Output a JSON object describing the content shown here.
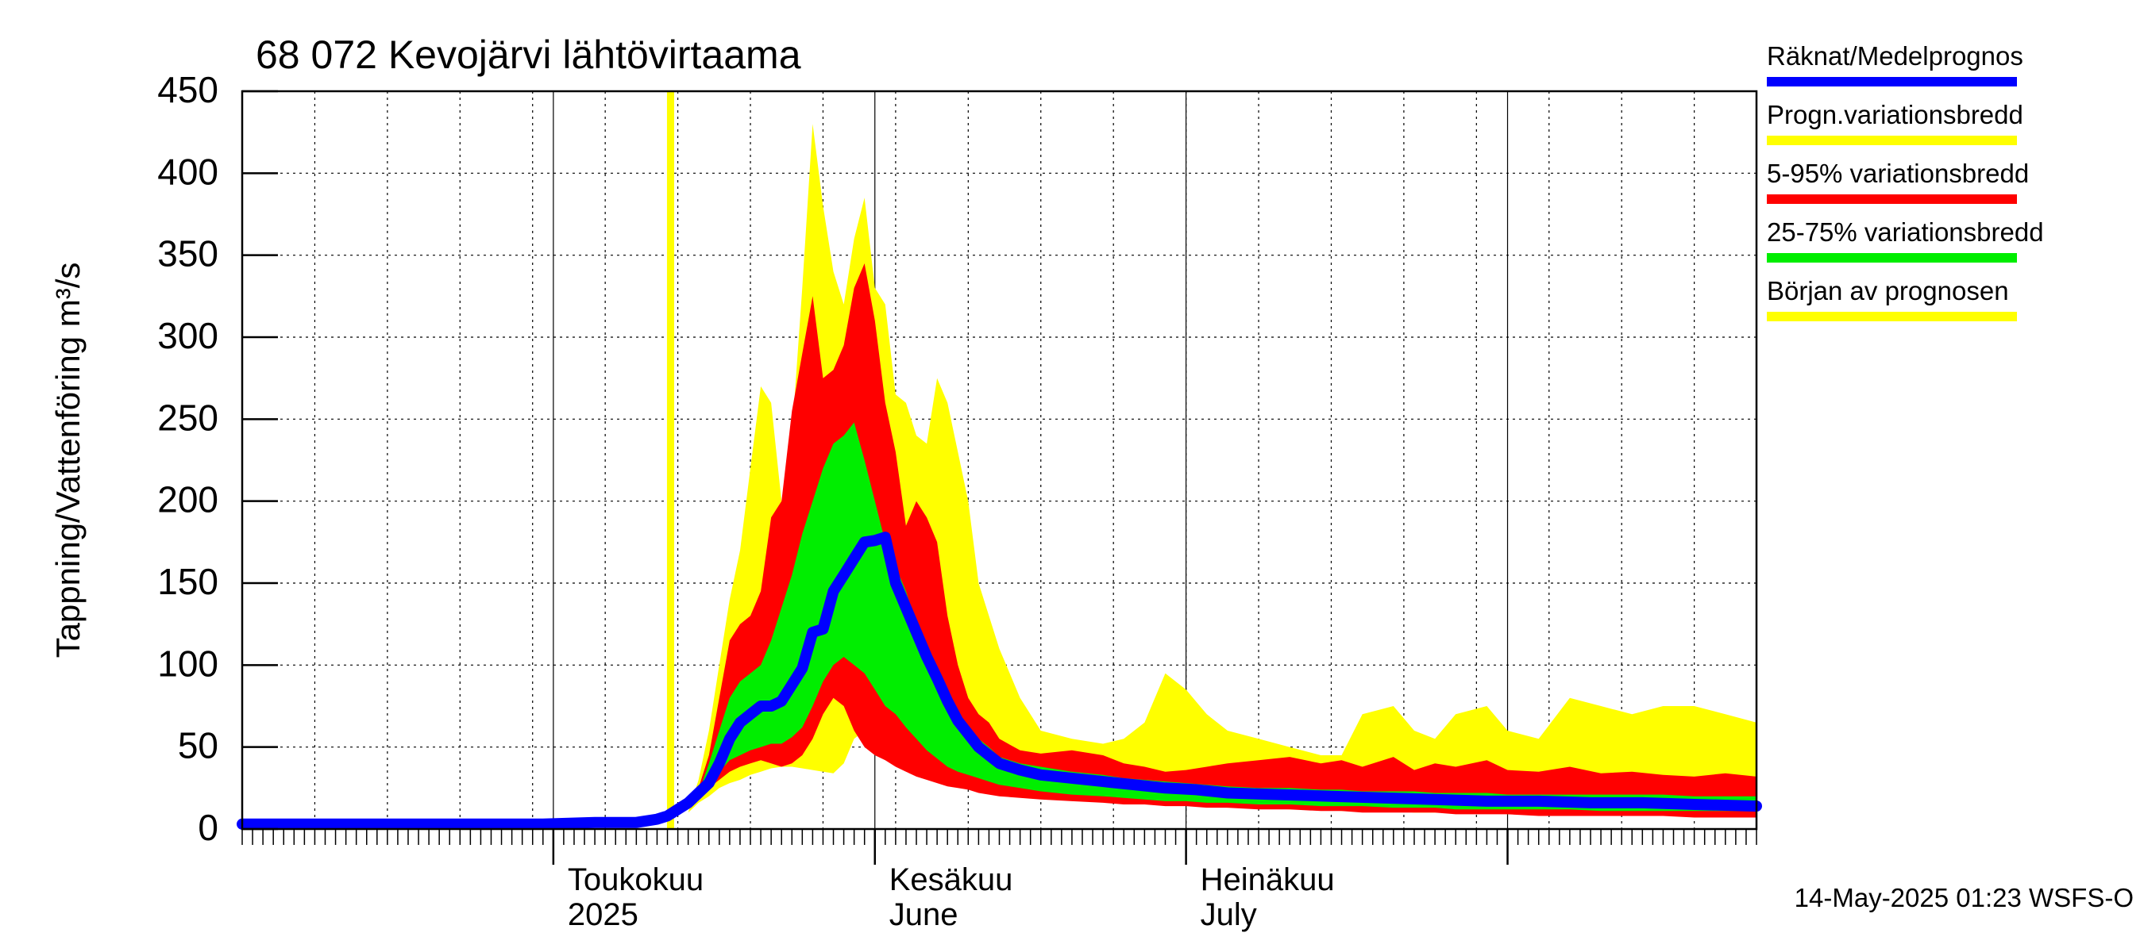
{
  "chart_data": {
    "type": "area",
    "title": "68 072 Kevojärvi lähtövirtaama",
    "ylabel": "Tappning/Vattenföring m³/s",
    "ylim": [
      0,
      450
    ],
    "yticks": [
      "0",
      "50",
      "100",
      "150",
      "200",
      "250",
      "300",
      "350",
      "400",
      "450"
    ],
    "xlim": [
      "2025-04-01",
      "2025-08-25"
    ],
    "month_labels": [
      {
        "date": "2025-05-01",
        "line1": "Toukokuu",
        "line2": "2025"
      },
      {
        "date": "2025-06-01",
        "line1": "Kesäkuu",
        "line2": "June"
      },
      {
        "date": "2025-07-01",
        "line1": "Heinäkuu",
        "line2": "July"
      }
    ],
    "forecast_start": "2025-05-13",
    "legend_position": "right",
    "footer": "14-May-2025 01:23 WSFS-O",
    "series": [
      {
        "name": "Progn.variationsbredd",
        "color": "#ffff00",
        "kind": "band",
        "x": [
          "2025-05-13",
          "2025-05-14",
          "2025-05-15",
          "2025-05-16",
          "2025-05-17",
          "2025-05-18",
          "2025-05-19",
          "2025-05-20",
          "2025-05-21",
          "2025-05-22",
          "2025-05-23",
          "2025-05-24",
          "2025-05-25",
          "2025-05-26",
          "2025-05-27",
          "2025-05-28",
          "2025-05-29",
          "2025-05-30",
          "2025-05-31",
          "2025-06-01",
          "2025-06-02",
          "2025-06-03",
          "2025-06-04",
          "2025-06-05",
          "2025-06-06",
          "2025-06-07",
          "2025-06-08",
          "2025-06-09",
          "2025-06-10",
          "2025-06-11",
          "2025-06-12",
          "2025-06-13",
          "2025-06-15",
          "2025-06-17",
          "2025-06-20",
          "2025-06-23",
          "2025-06-25",
          "2025-06-27",
          "2025-06-29",
          "2025-07-01",
          "2025-07-03",
          "2025-07-05",
          "2025-07-08",
          "2025-07-11",
          "2025-07-14",
          "2025-07-16",
          "2025-07-18",
          "2025-07-21",
          "2025-07-23",
          "2025-07-25",
          "2025-07-27",
          "2025-07-30",
          "2025-08-01",
          "2025-08-04",
          "2025-08-07",
          "2025-08-10",
          "2025-08-13",
          "2025-08-16",
          "2025-08-19",
          "2025-08-22",
          "2025-08-25"
        ],
        "high": [
          0,
          10,
          30,
          60,
          100,
          140,
          170,
          220,
          270,
          260,
          200,
          240,
          330,
          430,
          380,
          340,
          320,
          360,
          385,
          330,
          320,
          265,
          260,
          240,
          235,
          275,
          260,
          230,
          200,
          150,
          130,
          110,
          80,
          60,
          55,
          52,
          55,
          65,
          95,
          85,
          70,
          60,
          55,
          50,
          45,
          45,
          70,
          75,
          60,
          55,
          70,
          75,
          60,
          55,
          80,
          75,
          70,
          75,
          75,
          70,
          65
        ],
        "low": [
          0,
          10,
          16,
          20,
          25,
          28,
          30,
          33,
          35,
          37,
          38,
          38,
          37,
          36,
          35,
          34,
          40,
          55,
          60,
          56,
          52,
          48,
          45,
          42,
          40,
          38,
          36,
          34,
          32,
          30,
          28,
          26,
          24,
          22,
          20,
          19,
          18,
          17,
          16,
          15,
          14,
          13,
          13,
          12,
          12,
          11,
          11,
          11,
          10,
          10,
          10,
          10,
          9,
          9,
          9,
          8,
          8,
          8,
          8,
          8,
          8
        ]
      },
      {
        "name": "5-95% variationsbredd",
        "color": "#ff0000",
        "kind": "band",
        "x": [
          "2025-05-13",
          "2025-05-14",
          "2025-05-15",
          "2025-05-16",
          "2025-05-17",
          "2025-05-18",
          "2025-05-19",
          "2025-05-20",
          "2025-05-21",
          "2025-05-22",
          "2025-05-23",
          "2025-05-24",
          "2025-05-25",
          "2025-05-26",
          "2025-05-27",
          "2025-05-28",
          "2025-05-29",
          "2025-05-30",
          "2025-05-31",
          "2025-06-01",
          "2025-06-02",
          "2025-06-03",
          "2025-06-04",
          "2025-06-05",
          "2025-06-06",
          "2025-06-07",
          "2025-06-08",
          "2025-06-09",
          "2025-06-10",
          "2025-06-11",
          "2025-06-12",
          "2025-06-13",
          "2025-06-15",
          "2025-06-17",
          "2025-06-20",
          "2025-06-23",
          "2025-06-25",
          "2025-06-27",
          "2025-06-29",
          "2025-07-01",
          "2025-07-03",
          "2025-07-05",
          "2025-07-08",
          "2025-07-11",
          "2025-07-14",
          "2025-07-16",
          "2025-07-18",
          "2025-07-21",
          "2025-07-23",
          "2025-07-25",
          "2025-07-27",
          "2025-07-30",
          "2025-08-01",
          "2025-08-04",
          "2025-08-07",
          "2025-08-10",
          "2025-08-13",
          "2025-08-16",
          "2025-08-19",
          "2025-08-22",
          "2025-08-25"
        ],
        "high": [
          0,
          12,
          25,
          45,
          80,
          115,
          125,
          130,
          145,
          190,
          200,
          255,
          290,
          325,
          275,
          280,
          295,
          330,
          345,
          310,
          260,
          230,
          185,
          200,
          190,
          175,
          130,
          100,
          80,
          70,
          65,
          55,
          48,
          46,
          48,
          45,
          40,
          38,
          35,
          36,
          38,
          40,
          42,
          44,
          40,
          42,
          38,
          44,
          36,
          40,
          38,
          42,
          36,
          35,
          38,
          34,
          35,
          33,
          32,
          34,
          32
        ],
        "low": [
          0,
          12,
          18,
          25,
          30,
          35,
          38,
          40,
          42,
          40,
          38,
          40,
          45,
          55,
          70,
          80,
          75,
          60,
          50,
          45,
          42,
          38,
          35,
          32,
          30,
          28,
          26,
          25,
          24,
          22,
          21,
          20,
          19,
          18,
          17,
          16,
          15,
          15,
          14,
          14,
          13,
          13,
          12,
          12,
          11,
          11,
          10,
          10,
          10,
          10,
          9,
          9,
          9,
          8,
          8,
          8,
          8,
          8,
          7,
          7,
          7
        ]
      },
      {
        "name": "25-75% variationsbredd",
        "color": "#00ee00",
        "kind": "band",
        "x": [
          "2025-05-13",
          "2025-05-14",
          "2025-05-15",
          "2025-05-16",
          "2025-05-17",
          "2025-05-18",
          "2025-05-19",
          "2025-05-20",
          "2025-05-21",
          "2025-05-22",
          "2025-05-23",
          "2025-05-24",
          "2025-05-25",
          "2025-05-26",
          "2025-05-27",
          "2025-05-28",
          "2025-05-29",
          "2025-05-30",
          "2025-05-31",
          "2025-06-01",
          "2025-06-02",
          "2025-06-03",
          "2025-06-04",
          "2025-06-05",
          "2025-06-06",
          "2025-06-07",
          "2025-06-08",
          "2025-06-09",
          "2025-06-10",
          "2025-06-11",
          "2025-06-12",
          "2025-06-13",
          "2025-06-15",
          "2025-06-17",
          "2025-06-20",
          "2025-06-23",
          "2025-06-25",
          "2025-06-27",
          "2025-06-29",
          "2025-07-01",
          "2025-07-03",
          "2025-07-05",
          "2025-07-08",
          "2025-07-11",
          "2025-07-14",
          "2025-07-16",
          "2025-07-18",
          "2025-07-21",
          "2025-07-23",
          "2025-07-25",
          "2025-07-27",
          "2025-07-30",
          "2025-08-01",
          "2025-08-04",
          "2025-08-07",
          "2025-08-10",
          "2025-08-13",
          "2025-08-16",
          "2025-08-19",
          "2025-08-22",
          "2025-08-25"
        ],
        "high": [
          0,
          12,
          22,
          40,
          60,
          80,
          90,
          95,
          100,
          115,
          135,
          155,
          180,
          200,
          220,
          235,
          240,
          248,
          225,
          200,
          175,
          160,
          145,
          125,
          110,
          95,
          80,
          70,
          60,
          55,
          50,
          44,
          40,
          38,
          35,
          33,
          31,
          30,
          29,
          28,
          27,
          26,
          25,
          25,
          24,
          24,
          23,
          23,
          23,
          22,
          22,
          22,
          21,
          21,
          21,
          21,
          21,
          21,
          20,
          20,
          20
        ],
        "low": [
          0,
          12,
          20,
          28,
          35,
          42,
          45,
          48,
          50,
          52,
          52,
          56,
          62,
          75,
          90,
          100,
          105,
          100,
          95,
          85,
          75,
          70,
          62,
          55,
          48,
          43,
          38,
          35,
          33,
          31,
          29,
          27,
          25,
          23,
          21,
          20,
          19,
          18,
          17,
          17,
          16,
          16,
          15,
          15,
          14,
          14,
          14,
          13,
          13,
          13,
          12,
          12,
          12,
          12,
          12,
          11,
          11,
          11,
          11,
          11,
          11
        ]
      },
      {
        "name": "Räknat/Medelprognos",
        "color": "#0000ff",
        "kind": "line",
        "x": [
          "2025-04-01",
          "2025-04-10",
          "2025-04-20",
          "2025-04-30",
          "2025-05-05",
          "2025-05-08",
          "2025-05-09",
          "2025-05-10",
          "2025-05-11",
          "2025-05-12",
          "2025-05-13",
          "2025-05-14",
          "2025-05-15",
          "2025-05-16",
          "2025-05-17",
          "2025-05-18",
          "2025-05-19",
          "2025-05-20",
          "2025-05-21",
          "2025-05-22",
          "2025-05-23",
          "2025-05-24",
          "2025-05-25",
          "2025-05-26",
          "2025-05-27",
          "2025-05-28",
          "2025-05-29",
          "2025-05-30",
          "2025-05-31",
          "2025-06-01",
          "2025-06-02",
          "2025-06-03",
          "2025-06-04",
          "2025-06-05",
          "2025-06-06",
          "2025-06-07",
          "2025-06-08",
          "2025-06-09",
          "2025-06-10",
          "2025-06-11",
          "2025-06-12",
          "2025-06-13",
          "2025-06-15",
          "2025-06-17",
          "2025-06-20",
          "2025-06-23",
          "2025-06-26",
          "2025-06-29",
          "2025-07-02",
          "2025-07-05",
          "2025-07-10",
          "2025-07-15",
          "2025-07-20",
          "2025-07-25",
          "2025-07-30",
          "2025-08-04",
          "2025-08-09",
          "2025-08-14",
          "2025-08-19",
          "2025-08-25"
        ],
        "y": [
          3,
          3,
          3,
          3,
          4,
          4,
          4,
          5,
          6,
          8,
          12,
          16,
          22,
          28,
          40,
          55,
          65,
          70,
          75,
          75,
          78,
          88,
          98,
          120,
          122,
          145,
          155,
          165,
          175,
          176,
          178,
          150,
          135,
          120,
          105,
          92,
          78,
          66,
          58,
          50,
          45,
          40,
          36,
          33,
          31,
          29,
          27,
          25,
          24,
          22,
          21,
          20,
          19,
          18,
          17,
          17,
          16,
          16,
          15,
          14
        ]
      }
    ]
  },
  "legend": [
    {
      "label": "Räknat/Medelprognos",
      "color": "#0000ff"
    },
    {
      "label": "Progn.variationsbredd",
      "color": "#ffff00"
    },
    {
      "label": "5-95% variationsbredd",
      "color": "#ff0000"
    },
    {
      "label": "25-75% variationsbredd",
      "color": "#00ee00"
    },
    {
      "label": "Början av prognosen",
      "color": "#ffff00"
    }
  ]
}
